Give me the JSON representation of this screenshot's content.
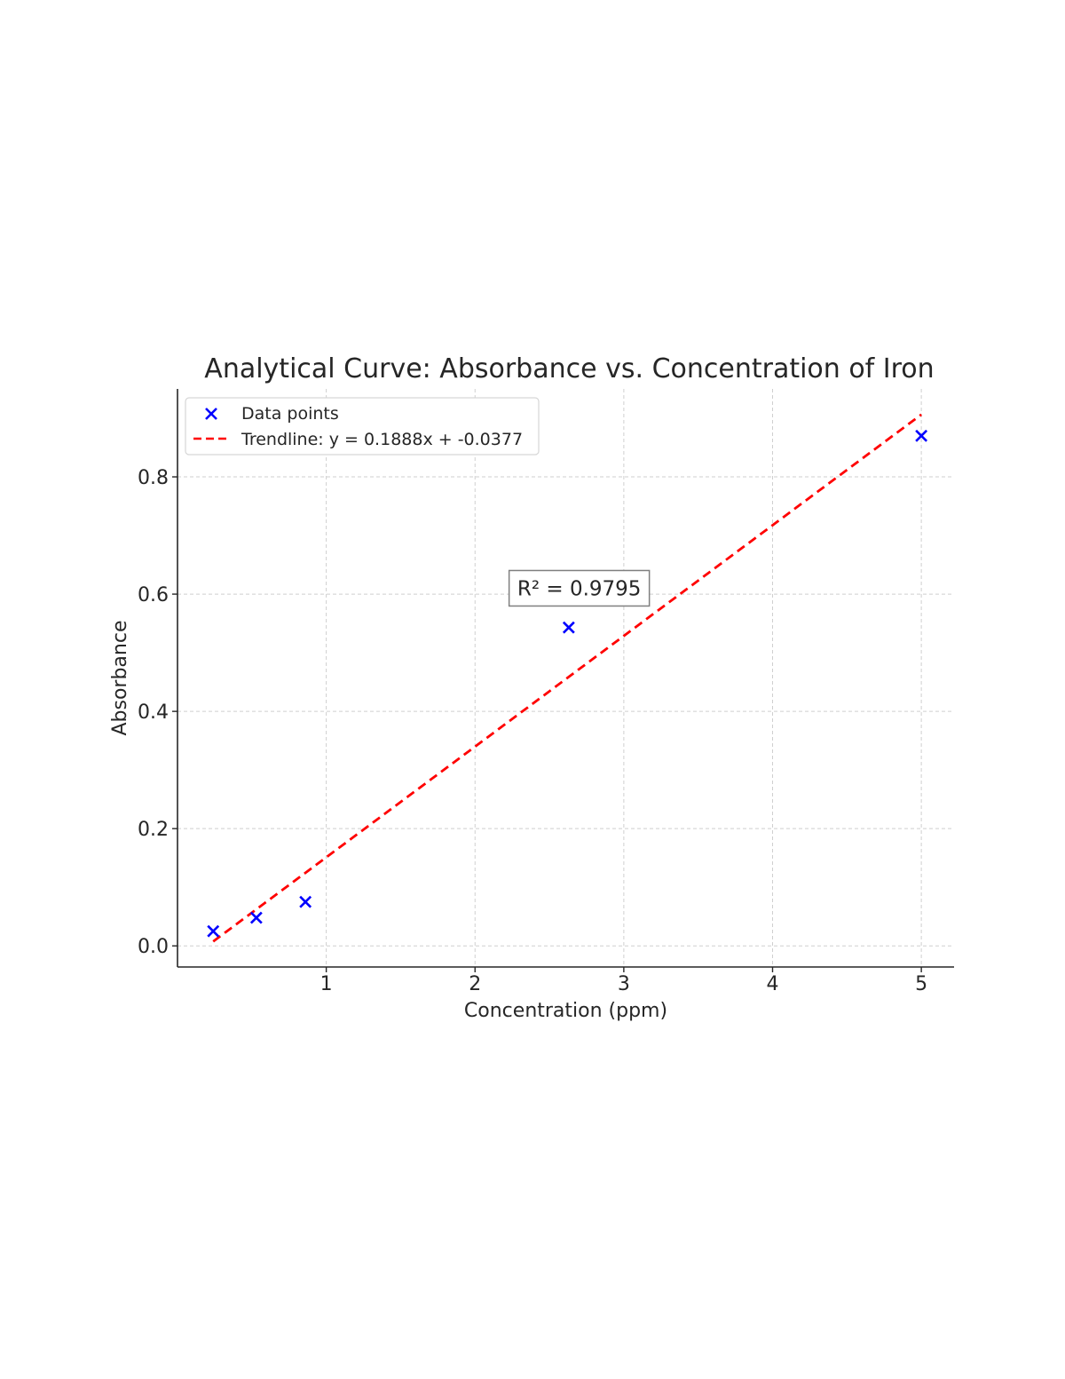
{
  "chart_data": {
    "type": "scatter",
    "title": "Analytical Curve: Absorbance vs. Concentration of Iron",
    "xlabel": "Concentration (ppm)",
    "ylabel": "Absorbance",
    "xlim": [
      0.0,
      5.22
    ],
    "ylim": [
      -0.036,
      0.95
    ],
    "x_ticks": [
      1,
      2,
      3,
      4,
      5
    ],
    "y_ticks": [
      0.0,
      0.2,
      0.4,
      0.6,
      0.8
    ],
    "x_tick_labels": [
      "1",
      "2",
      "3",
      "4",
      "5"
    ],
    "y_tick_labels": [
      "0.0",
      "0.2",
      "0.4",
      "0.6",
      "0.8"
    ],
    "grid": true,
    "legend_position": "upper-left",
    "series": [
      {
        "name": "Data points",
        "kind": "scatter",
        "marker": "x",
        "color": "#0000ff",
        "x": [
          0.24,
          0.53,
          0.86,
          2.63,
          5.0
        ],
        "y": [
          0.025,
          0.048,
          0.075,
          0.543,
          0.87
        ]
      },
      {
        "name": "Trendline: y = 0.1888x + -0.0377",
        "kind": "line",
        "style": "dashed",
        "color": "#ff0000",
        "x": [
          0.24,
          5.0
        ],
        "y": [
          0.0076,
          0.9063
        ]
      }
    ],
    "annotation": {
      "text": "R² = 0.9795",
      "x": 2.42,
      "y": 0.61
    }
  }
}
